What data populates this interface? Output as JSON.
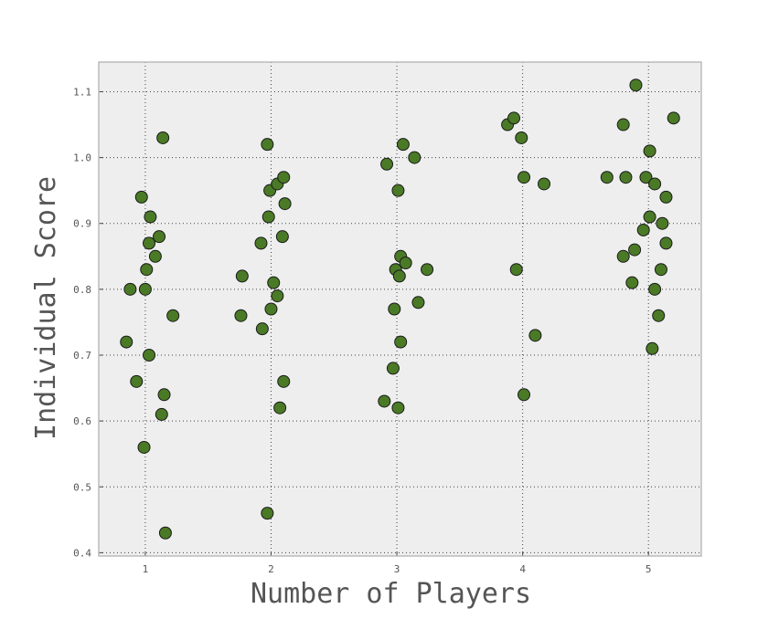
{
  "chart_data": {
    "type": "scatter",
    "title": "",
    "xlabel": "Number of Players",
    "ylabel": "Individual Score",
    "xlim": [
      0.63,
      5.42
    ],
    "ylim": [
      0.395,
      1.145
    ],
    "x_ticks": [
      1,
      2,
      3,
      4,
      5
    ],
    "x_tick_labels": [
      "1",
      "2",
      "3",
      "4",
      "5"
    ],
    "y_ticks": [
      0.4,
      0.5,
      0.6,
      0.7,
      0.8,
      0.9,
      1.0,
      1.1
    ],
    "y_tick_labels": [
      "0.4",
      "0.5",
      "0.6",
      "0.7",
      "0.8",
      "0.9",
      "1.0",
      "1.1"
    ],
    "grid": true,
    "marker_color": "#4a7a26",
    "marker_edge_color": "#1a1a1a",
    "background_color": "#eeeeee",
    "points": [
      {
        "x": 0.85,
        "y": 0.72
      },
      {
        "x": 0.88,
        "y": 0.8
      },
      {
        "x": 0.93,
        "y": 0.66
      },
      {
        "x": 0.97,
        "y": 0.94
      },
      {
        "x": 0.99,
        "y": 0.56
      },
      {
        "x": 1.0,
        "y": 0.8
      },
      {
        "x": 1.01,
        "y": 0.83
      },
      {
        "x": 1.03,
        "y": 0.7
      },
      {
        "x": 1.03,
        "y": 0.87
      },
      {
        "x": 1.04,
        "y": 0.91
      },
      {
        "x": 1.08,
        "y": 0.85
      },
      {
        "x": 1.11,
        "y": 0.88
      },
      {
        "x": 1.13,
        "y": 0.61
      },
      {
        "x": 1.14,
        "y": 1.03
      },
      {
        "x": 1.15,
        "y": 0.64
      },
      {
        "x": 1.16,
        "y": 0.43
      },
      {
        "x": 1.22,
        "y": 0.76
      },
      {
        "x": 1.76,
        "y": 0.76
      },
      {
        "x": 1.77,
        "y": 0.82
      },
      {
        "x": 1.92,
        "y": 0.87
      },
      {
        "x": 1.93,
        "y": 0.74
      },
      {
        "x": 1.97,
        "y": 0.46
      },
      {
        "x": 1.97,
        "y": 1.02
      },
      {
        "x": 1.98,
        "y": 0.91
      },
      {
        "x": 1.99,
        "y": 0.95
      },
      {
        "x": 2.0,
        "y": 0.77
      },
      {
        "x": 2.02,
        "y": 0.81
      },
      {
        "x": 2.05,
        "y": 0.96
      },
      {
        "x": 2.05,
        "y": 0.79
      },
      {
        "x": 2.07,
        "y": 0.62
      },
      {
        "x": 2.09,
        "y": 0.88
      },
      {
        "x": 2.1,
        "y": 0.66
      },
      {
        "x": 2.1,
        "y": 0.97
      },
      {
        "x": 2.11,
        "y": 0.93
      },
      {
        "x": 2.9,
        "y": 0.63
      },
      {
        "x": 2.92,
        "y": 0.99
      },
      {
        "x": 2.97,
        "y": 0.68
      },
      {
        "x": 2.98,
        "y": 0.77
      },
      {
        "x": 2.99,
        "y": 0.83
      },
      {
        "x": 3.01,
        "y": 0.95
      },
      {
        "x": 3.01,
        "y": 0.62
      },
      {
        "x": 3.02,
        "y": 0.82
      },
      {
        "x": 3.03,
        "y": 0.72
      },
      {
        "x": 3.03,
        "y": 0.85
      },
      {
        "x": 3.05,
        "y": 1.02
      },
      {
        "x": 3.07,
        "y": 0.84
      },
      {
        "x": 3.14,
        "y": 1.0
      },
      {
        "x": 3.17,
        "y": 0.78
      },
      {
        "x": 3.24,
        "y": 0.83
      },
      {
        "x": 3.88,
        "y": 1.05
      },
      {
        "x": 3.93,
        "y": 1.06
      },
      {
        "x": 3.95,
        "y": 0.83
      },
      {
        "x": 3.99,
        "y": 1.03
      },
      {
        "x": 4.01,
        "y": 0.64
      },
      {
        "x": 4.01,
        "y": 0.97
      },
      {
        "x": 4.1,
        "y": 0.73
      },
      {
        "x": 4.17,
        "y": 0.96
      },
      {
        "x": 4.67,
        "y": 0.97
      },
      {
        "x": 4.8,
        "y": 0.85
      },
      {
        "x": 4.8,
        "y": 1.05
      },
      {
        "x": 4.82,
        "y": 0.97
      },
      {
        "x": 4.87,
        "y": 0.81
      },
      {
        "x": 4.89,
        "y": 0.86
      },
      {
        "x": 4.9,
        "y": 1.11
      },
      {
        "x": 4.96,
        "y": 0.89
      },
      {
        "x": 4.98,
        "y": 0.97
      },
      {
        "x": 5.01,
        "y": 0.91
      },
      {
        "x": 5.01,
        "y": 1.01
      },
      {
        "x": 5.03,
        "y": 0.71
      },
      {
        "x": 5.05,
        "y": 0.8
      },
      {
        "x": 5.05,
        "y": 0.96
      },
      {
        "x": 5.08,
        "y": 0.76
      },
      {
        "x": 5.1,
        "y": 0.83
      },
      {
        "x": 5.11,
        "y": 0.9
      },
      {
        "x": 5.14,
        "y": 0.87
      },
      {
        "x": 5.14,
        "y": 0.94
      },
      {
        "x": 5.2,
        "y": 1.06
      }
    ]
  }
}
